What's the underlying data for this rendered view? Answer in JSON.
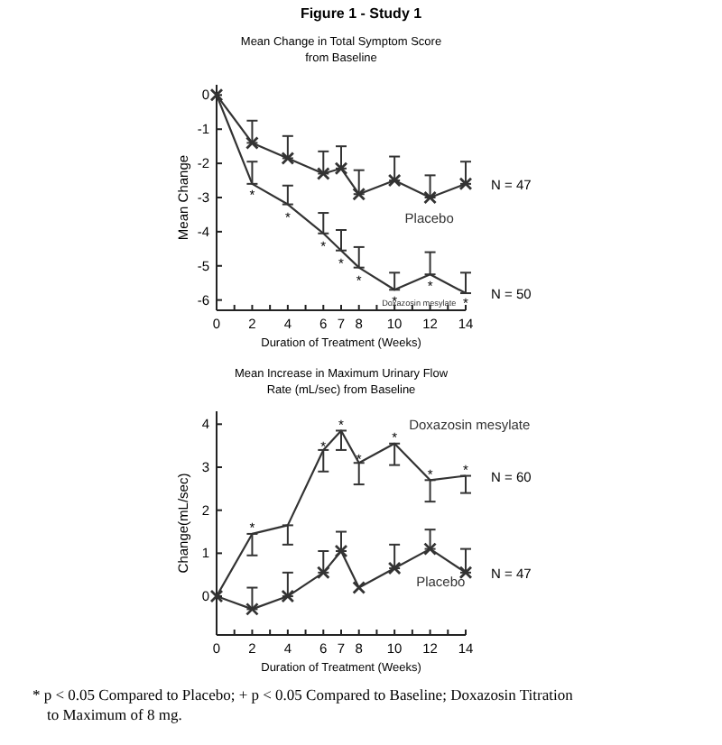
{
  "chart_data": [
    {
      "type": "line",
      "title": "Mean Change in Total Symptom Score from Baseline",
      "xlabel": "Duration of Treatment (Weeks)",
      "ylabel": "Mean Change",
      "x": [
        0,
        2,
        4,
        6,
        7,
        8,
        10,
        12,
        14
      ],
      "xlim": [
        0,
        14
      ],
      "xticks": [
        0,
        {
          "value": 1,
          "label": null
        },
        2,
        {
          "value": 3,
          "label": null
        },
        4,
        {
          "value": 5,
          "label": null
        },
        6,
        7,
        8,
        {
          "value": 9,
          "label": null
        },
        10,
        {
          "value": 11,
          "label": null
        },
        12,
        {
          "value": 13,
          "label": null
        },
        14
      ],
      "ylim": [
        -6.3,
        0.3
      ],
      "yticks": [
        0,
        -1,
        -2,
        -3,
        -4,
        -5,
        -6
      ],
      "grid": false,
      "series": [
        {
          "name": "Placebo",
          "color": "#333333",
          "marker": "cross",
          "values": [
            0,
            -1.4,
            -1.85,
            -2.3,
            -2.15,
            -2.9,
            -2.5,
            -3.0,
            -2.6
          ],
          "errors": [
            null,
            [
              -1.4,
              -0.75
            ],
            [
              -1.85,
              -1.2
            ],
            [
              -2.3,
              -1.65
            ],
            [
              -2.15,
              -1.5
            ],
            [
              -2.9,
              -2.2
            ],
            [
              -2.5,
              -1.8
            ],
            [
              -3.0,
              -2.35
            ],
            [
              -2.6,
              -1.95
            ]
          ]
        },
        {
          "name": "Doxazosin mesylate",
          "color": "#333333",
          "marker": "none",
          "values": [
            0,
            -2.6,
            -3.2,
            -4.05,
            -4.55,
            -5.05,
            -5.7,
            -5.25,
            -5.8
          ],
          "errors": [
            null,
            [
              -2.6,
              -1.95
            ],
            [
              -3.2,
              -2.65
            ],
            [
              -4.05,
              -3.45
            ],
            [
              -4.55,
              -3.95
            ],
            [
              -5.05,
              -4.45
            ],
            [
              -5.7,
              -5.2
            ],
            [
              -5.25,
              -4.6
            ],
            [
              -5.8,
              -5.2
            ]
          ]
        }
      ],
      "annotations": [
        "Figure 1 - Study 1",
        {
          "text": "N = 47",
          "x": 14,
          "y": -2.6
        },
        {
          "text": "N = 50",
          "x": 14,
          "y": -5.8
        },
        {
          "text": "*",
          "x": 2,
          "y": -2.85
        },
        {
          "text": "*",
          "x": 4,
          "y": -3.5
        },
        {
          "text": "*",
          "x": 6,
          "y": -4.35
        },
        {
          "text": "*",
          "x": 7,
          "y": -4.85
        },
        {
          "text": "*",
          "x": 8,
          "y": -5.35
        },
        {
          "text": "*",
          "x": 10,
          "y": -5.95
        },
        {
          "text": "*",
          "x": 12,
          "y": -5.5
        },
        {
          "text": "*",
          "x": 14,
          "y": -6.0
        }
      ]
    },
    {
      "type": "line",
      "title": "Mean Increase in Maximum Urinary Flow Rate (mL/sec) from Baseline",
      "xlabel": "Duration of Treatment (Weeks)",
      "ylabel": "Change(mL/sec)",
      "x": [
        0,
        2,
        4,
        6,
        7,
        8,
        10,
        12,
        14
      ],
      "xlim": [
        0,
        14
      ],
      "xticks": [
        0,
        {
          "value": 1,
          "label": null
        },
        2,
        {
          "value": 3,
          "label": null
        },
        4,
        {
          "value": 5,
          "label": null
        },
        6,
        7,
        8,
        {
          "value": 9,
          "label": null
        },
        10,
        {
          "value": 11,
          "label": null
        },
        12,
        {
          "value": 13,
          "label": null
        },
        14
      ],
      "ylim": [
        -0.9,
        4.3
      ],
      "yticks": [
        0,
        1,
        2,
        3,
        4
      ],
      "grid": false,
      "series": [
        {
          "name": "Doxazosin mesylate",
          "color": "#333333",
          "marker": "none",
          "values": [
            0,
            1.45,
            1.65,
            3.4,
            3.85,
            3.1,
            3.55,
            2.7,
            2.8
          ],
          "errors": [
            null,
            [
              0.95,
              1.45
            ],
            [
              1.2,
              1.65
            ],
            [
              2.9,
              3.4
            ],
            [
              3.4,
              3.85
            ],
            [
              2.6,
              3.1
            ],
            [
              3.05,
              3.55
            ],
            [
              2.2,
              2.7
            ],
            [
              2.4,
              2.8
            ]
          ]
        },
        {
          "name": "Placebo",
          "color": "#333333",
          "marker": "cross",
          "values": [
            0,
            -0.3,
            0.0,
            0.55,
            1.05,
            0.2,
            0.65,
            1.1,
            0.55
          ],
          "errors": [
            null,
            [
              -0.3,
              0.2
            ],
            [
              0.0,
              0.55
            ],
            [
              0.55,
              1.05
            ],
            [
              1.05,
              1.5
            ],
            null,
            [
              0.65,
              1.2
            ],
            [
              1.1,
              1.55
            ],
            [
              0.55,
              1.1
            ]
          ]
        }
      ],
      "annotations": [
        {
          "text": "N = 60",
          "x": 14,
          "y": 2.8
        },
        {
          "text": "N = 47",
          "x": 14,
          "y": 0.55
        },
        {
          "text": "*",
          "x": 2,
          "y": 1.65
        },
        {
          "text": "*",
          "x": 6,
          "y": 3.55
        },
        {
          "text": "*",
          "x": 7,
          "y": 4.05
        },
        {
          "text": "*",
          "x": 8,
          "y": 3.25
        },
        {
          "text": "*",
          "x": 10,
          "y": 3.75
        },
        {
          "text": "*",
          "x": 12,
          "y": 2.9
        },
        {
          "text": "*",
          "x": 14,
          "y": 3.0
        },
        "* p < 0.05 Compared to Placebo; + p < 0.05 Compared to Baseline; Doxazosin Titration to Maximum of 8 mg."
      ]
    }
  ]
}
